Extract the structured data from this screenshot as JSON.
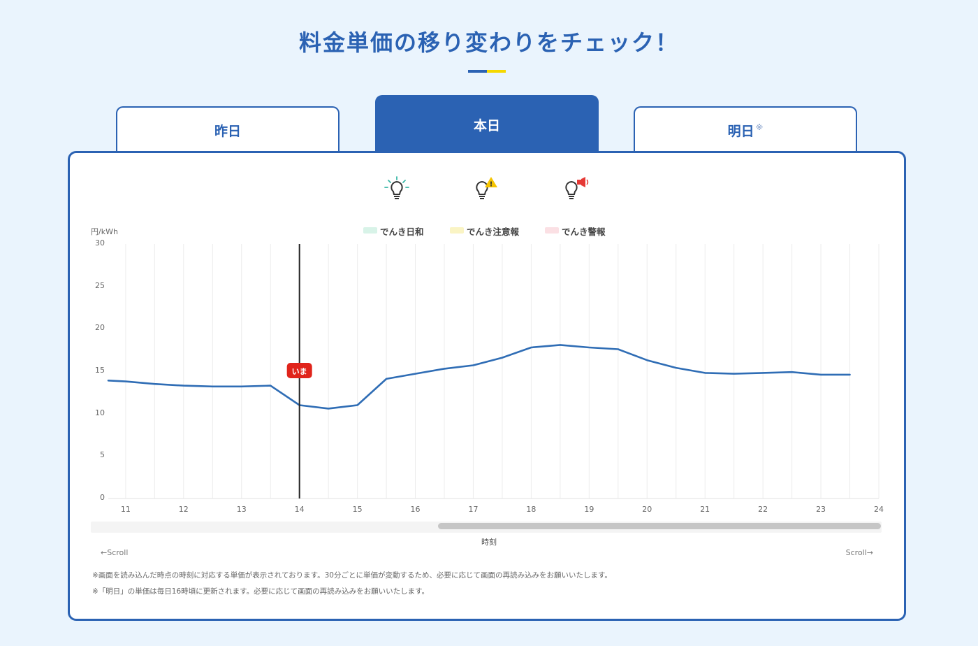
{
  "page": {
    "title": "料金単価の移り変わりをチェック！"
  },
  "tabs": [
    {
      "label": "昨日",
      "active": false
    },
    {
      "label": "本日",
      "active": true
    },
    {
      "label": "明日",
      "note_mark": "※",
      "active": false
    }
  ],
  "legend": [
    {
      "label": "でんき日和",
      "color": "#d8f3e8",
      "icon": "bulb-sparkle-icon"
    },
    {
      "label": "でんき注意報",
      "color": "#faf4c4",
      "icon": "bulb-warning-icon"
    },
    {
      "label": "でんき警報",
      "color": "#fbe0e4",
      "icon": "bulb-alarm-icon"
    }
  ],
  "now_marker": {
    "label": "いま",
    "x": 14
  },
  "scroll": {
    "left_label": "←Scroll",
    "right_label": "Scroll→"
  },
  "notes": [
    "※画面を読み込んだ時点の時刻に対応する単価が表示されております。30分ごとに単価が変動するため、必要に応じて画面の再読み込みをお願いいたします。",
    "※「明日」の単価は毎日16時頃に更新されます。必要に応じて画面の再読み込みをお願いいたします。"
  ],
  "chart_data": {
    "type": "line",
    "title": "",
    "xlabel": "時刻",
    "ylabel": "円/kWh",
    "xlim": [
      10.7,
      24
    ],
    "ylim": [
      0,
      30
    ],
    "x_ticks": [
      11,
      12,
      13,
      14,
      15,
      16,
      17,
      18,
      19,
      20,
      21,
      22,
      23,
      24
    ],
    "y_ticks": [
      0,
      5,
      10,
      15,
      20,
      25,
      30
    ],
    "grid": true,
    "series": [
      {
        "color": "#2f6db5",
        "x": [
          10.7,
          11.0,
          11.5,
          12.0,
          12.5,
          13.0,
          13.5,
          14.0,
          14.5,
          15.0,
          15.5,
          16.0,
          16.5,
          17.0,
          17.5,
          18.0,
          18.5,
          19.0,
          19.5,
          20.0,
          20.5,
          21.0,
          21.5,
          22.0,
          22.5,
          23.0,
          23.5
        ],
        "y": [
          13.9,
          13.8,
          13.5,
          13.3,
          13.2,
          13.2,
          13.3,
          11.0,
          10.6,
          11.0,
          14.1,
          14.7,
          15.3,
          15.7,
          16.6,
          17.8,
          18.1,
          17.8,
          17.6,
          16.3,
          15.4,
          14.8,
          14.7,
          14.8,
          14.9,
          14.6,
          14.6
        ]
      }
    ]
  }
}
